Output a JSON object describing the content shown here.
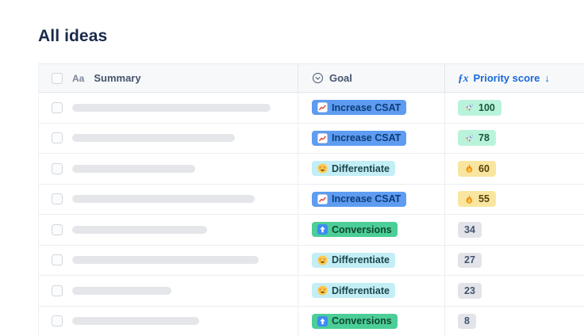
{
  "page": {
    "title": "All ideas"
  },
  "colors": {
    "accent_blue": "#1868DB",
    "header_text": "#44546F",
    "goal_increase_csat_bg": "#5E9CF1",
    "goal_differentiate_bg": "#C3EEF6",
    "goal_conversions_bg": "#4BCE97",
    "score_high_bg": "#BAF3DB",
    "score_mid_bg": "#F8E6A0",
    "score_low_bg": "#E2E4E9"
  },
  "table": {
    "header": {
      "summary": {
        "label": "Summary",
        "icon_glyph": "Aa"
      },
      "goal": {
        "label": "Goal",
        "icon": "select-field-icon"
      },
      "priority": {
        "label": "Priority score",
        "fx_glyph": "ƒx",
        "sort_glyph": "↓"
      }
    },
    "rows": [
      {
        "summary_bar_width": 250,
        "goal": {
          "label": "Increase CSAT",
          "icon": "chart-up-icon",
          "bg": "#5E9CF1",
          "fg": "#0D3C78"
        },
        "score": {
          "value": "100",
          "icon": "rocket-icon",
          "bg": "#BAF3DB",
          "fg": "#17593C"
        }
      },
      {
        "summary_bar_width": 205,
        "goal": {
          "label": "Increase CSAT",
          "icon": "chart-up-icon",
          "bg": "#5E9CF1",
          "fg": "#0D3C78"
        },
        "score": {
          "value": "78",
          "icon": "rocket-icon",
          "bg": "#BAF3DB",
          "fg": "#17593C"
        }
      },
      {
        "summary_bar_width": 155,
        "goal": {
          "label": "Differentiate",
          "icon": "star-struck-icon",
          "bg": "#C3EEF6",
          "fg": "#1A454B"
        },
        "score": {
          "value": "60",
          "icon": "fire-icon",
          "bg": "#F8E6A0",
          "fg": "#574106"
        }
      },
      {
        "summary_bar_width": 230,
        "goal": {
          "label": "Increase CSAT",
          "icon": "chart-up-icon",
          "bg": "#5E9CF1",
          "fg": "#0D3C78"
        },
        "score": {
          "value": "55",
          "icon": "fire-icon",
          "bg": "#F8E6A0",
          "fg": "#574106"
        }
      },
      {
        "summary_bar_width": 170,
        "goal": {
          "label": "Conversions",
          "icon": "arrow-up-box-icon",
          "bg": "#4BCE97",
          "fg": "#13452F"
        },
        "score": {
          "value": "34",
          "icon": null,
          "bg": "#E2E4E9",
          "fg": "#44546F"
        }
      },
      {
        "summary_bar_width": 235,
        "goal": {
          "label": "Differentiate",
          "icon": "star-struck-icon",
          "bg": "#C3EEF6",
          "fg": "#1A454B"
        },
        "score": {
          "value": "27",
          "icon": null,
          "bg": "#E2E4E9",
          "fg": "#44546F"
        }
      },
      {
        "summary_bar_width": 125,
        "goal": {
          "label": "Differentiate",
          "icon": "star-struck-icon",
          "bg": "#C3EEF6",
          "fg": "#1A454B"
        },
        "score": {
          "value": "23",
          "icon": null,
          "bg": "#E2E4E9",
          "fg": "#44546F"
        }
      },
      {
        "summary_bar_width": 160,
        "goal": {
          "label": "Conversions",
          "icon": "arrow-up-box-icon",
          "bg": "#4BCE97",
          "fg": "#13452F"
        },
        "score": {
          "value": "8",
          "icon": null,
          "bg": "#E2E4E9",
          "fg": "#44546F"
        }
      }
    ]
  }
}
